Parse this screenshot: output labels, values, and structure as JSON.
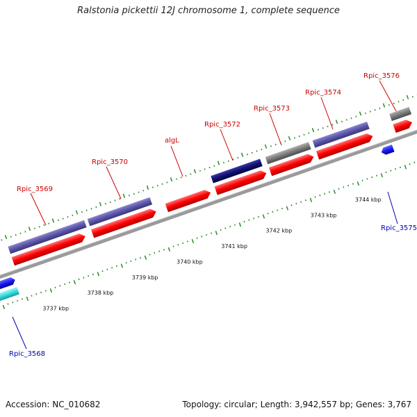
{
  "title": "Ralstonia pickettii 12J chromosome 1, complete sequence",
  "footer": {
    "accession": "Accession: NC_010682",
    "summary": "Topology: circular; Length: 3,942,557 bp; Genes: 3,767"
  },
  "colors": {
    "forward_label": "#cc0000",
    "reverse_label": "#0000aa",
    "backbone": "#999999",
    "tick": "#2a8a2a",
    "cds_forward": "#ff0000",
    "purple": "#5b55a8",
    "navy": "#101070",
    "gray": "#7a7a7a",
    "blue": "#1a1aee",
    "cyan": "#33dddd"
  },
  "kbp_labels": [
    "3737 kbp",
    "3738 kbp",
    "3739 kbp",
    "3740 kbp",
    "3741 kbp",
    "3742 kbp",
    "3743 kbp",
    "3744 kbp"
  ],
  "forward_genes": [
    {
      "name": "Rpic_3569",
      "color": "red"
    },
    {
      "name": "Rpic_3570",
      "color": "red"
    },
    {
      "name": "algL",
      "color": "red"
    },
    {
      "name": "Rpic_3572",
      "color": "red"
    },
    {
      "name": "Rpic_3573",
      "color": "red"
    },
    {
      "name": "Rpic_3574",
      "color": "red"
    },
    {
      "name": "Rpic_3576",
      "color": "red"
    }
  ],
  "reverse_genes": [
    {
      "name": "Rpic_3568",
      "color": "blue"
    },
    {
      "name": "Rpic_3575",
      "color": "blue"
    }
  ]
}
